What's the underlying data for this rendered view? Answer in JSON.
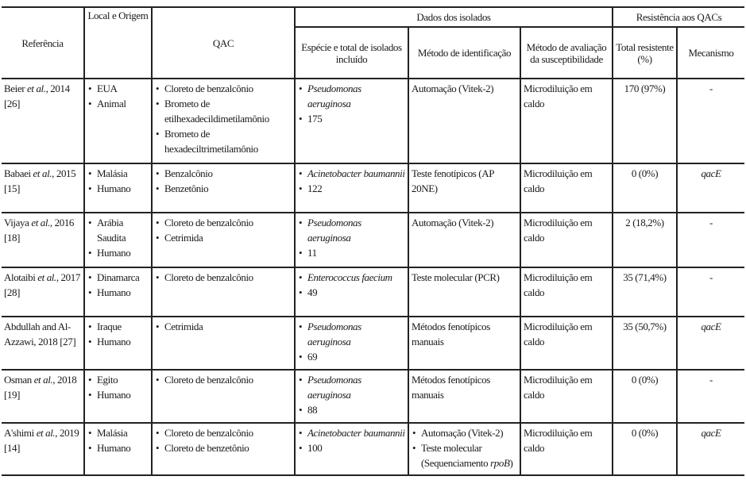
{
  "headers": {
    "reference": "Referência",
    "location": "Local e Origem",
    "qac": "QAC",
    "isolate_data": "Dados dos isolados",
    "species": "Espécie e total de isolados incluído",
    "identification": "Método de identificação",
    "susceptibility": "Método de avaliação da susceptibilidade",
    "resistance": "Resistência aos QACs",
    "total_resistant": "Total resistente (%)",
    "mechanism": "Mecanismo"
  },
  "rows": [
    {
      "ref": [
        {
          "t": "Beier "
        },
        {
          "t": "et al.",
          "i": true
        },
        {
          "t": ", 2014 [26]"
        }
      ],
      "location": [
        "EUA",
        "Animal"
      ],
      "qac": [
        "Cloreto de benzalcônio",
        "Brometo de etilhexadecildimetilamônio",
        "Brometo de hexadeciltrimetilamônio"
      ],
      "species": "Pseudomonas aeruginosa",
      "count": "175",
      "identification": [
        [
          {
            "t": "Automação (Vitek-2)"
          }
        ]
      ],
      "id_list": false,
      "susceptibility": "Microdiluição em caldo",
      "total": "170 (97%)",
      "mechanism": "-",
      "mech_italic": false
    },
    {
      "ref": [
        {
          "t": "Babaei "
        },
        {
          "t": "et al.",
          "i": true
        },
        {
          "t": ", 2015 [15]"
        }
      ],
      "location": [
        "Malásia",
        "Humano"
      ],
      "qac": [
        "Benzalcônio",
        "Benzetônio"
      ],
      "species": "Acinetobacter baumannii",
      "count": "122",
      "identification": [
        [
          {
            "t": "Teste fenotípicos (AP 20NE)"
          }
        ]
      ],
      "id_list": false,
      "susceptibility": "Microdiluição em caldo",
      "total": "0 (0%)",
      "mechanism": "qacE",
      "mech_italic": true
    },
    {
      "ref": [
        {
          "t": "Vijaya "
        },
        {
          "t": "et al.",
          "i": true
        },
        {
          "t": ", 2016 [18]"
        }
      ],
      "location": [
        "Arábia Saudita",
        "Humano"
      ],
      "qac": [
        "Cloreto de benzalcônio",
        "Cetrimida"
      ],
      "species": "Pseudomonas aeruginosa",
      "count": "11",
      "identification": [
        [
          {
            "t": "Automação (Vitek-2)"
          }
        ]
      ],
      "id_list": false,
      "susceptibility": "Microdiluição em caldo",
      "total": "2 (18,2%)",
      "mechanism": "-",
      "mech_italic": false
    },
    {
      "ref": [
        {
          "t": "Alotaibi "
        },
        {
          "t": "et al.",
          "i": true
        },
        {
          "t": ", 2017 [28]"
        }
      ],
      "location": [
        "Dinamarca",
        "Humano"
      ],
      "qac": [
        "Cloreto de benzalcônio"
      ],
      "species": "Enterococcus faecium",
      "count": "49",
      "identification": [
        [
          {
            "t": "Teste molecular (PCR)"
          }
        ]
      ],
      "id_list": false,
      "susceptibility": "Microdiluição em caldo",
      "total": "35 (71,4%)",
      "mechanism": "-",
      "mech_italic": false
    },
    {
      "ref": [
        {
          "t": "Abdullah and Al-Azzawi, 2018 [27]"
        }
      ],
      "location": [
        "Iraque",
        "Humano"
      ],
      "qac": [
        "Cetrimida"
      ],
      "species": "Pseudomonas aeruginosa",
      "count": "69",
      "identification": [
        [
          {
            "t": "Métodos fenotípicos manuais"
          }
        ]
      ],
      "id_list": false,
      "susceptibility": "Microdiluição em caldo",
      "total": "35 (50,7%)",
      "mechanism": "qacE",
      "mech_italic": true
    },
    {
      "ref": [
        {
          "t": "Osman "
        },
        {
          "t": "et al.",
          "i": true
        },
        {
          "t": ", 2018 [19]"
        }
      ],
      "location": [
        "Egito",
        "Humano"
      ],
      "qac": [
        "Cloreto de benzalcônio"
      ],
      "species": "Pseudomonas aeruginosa",
      "count": "88",
      "identification": [
        [
          {
            "t": "Métodos fenotípicos manuais"
          }
        ]
      ],
      "id_list": false,
      "susceptibility": "Microdiluição em caldo",
      "total": "0 (0%)",
      "mechanism": "-",
      "mech_italic": false
    },
    {
      "ref": [
        {
          "t": "A'shimi "
        },
        {
          "t": "et al.",
          "i": true
        },
        {
          "t": ", 2019 [14]"
        }
      ],
      "location": [
        "Malásia",
        "Humano"
      ],
      "qac": [
        "Cloreto de benzalcônio",
        "Cloreto de benzetônio"
      ],
      "species": "Acinetobacter baumannii",
      "count": "100",
      "identification": [
        [
          {
            "t": "Automação (Vitek-2)"
          }
        ],
        [
          {
            "t": "Teste molecular (Sequenciamento "
          },
          {
            "t": "rpoB",
            "i": true
          },
          {
            "t": ")"
          }
        ]
      ],
      "id_list": true,
      "susceptibility": "Microdiluição em caldo",
      "total": "0 (0%)",
      "mechanism": "qacE",
      "mech_italic": true
    }
  ]
}
